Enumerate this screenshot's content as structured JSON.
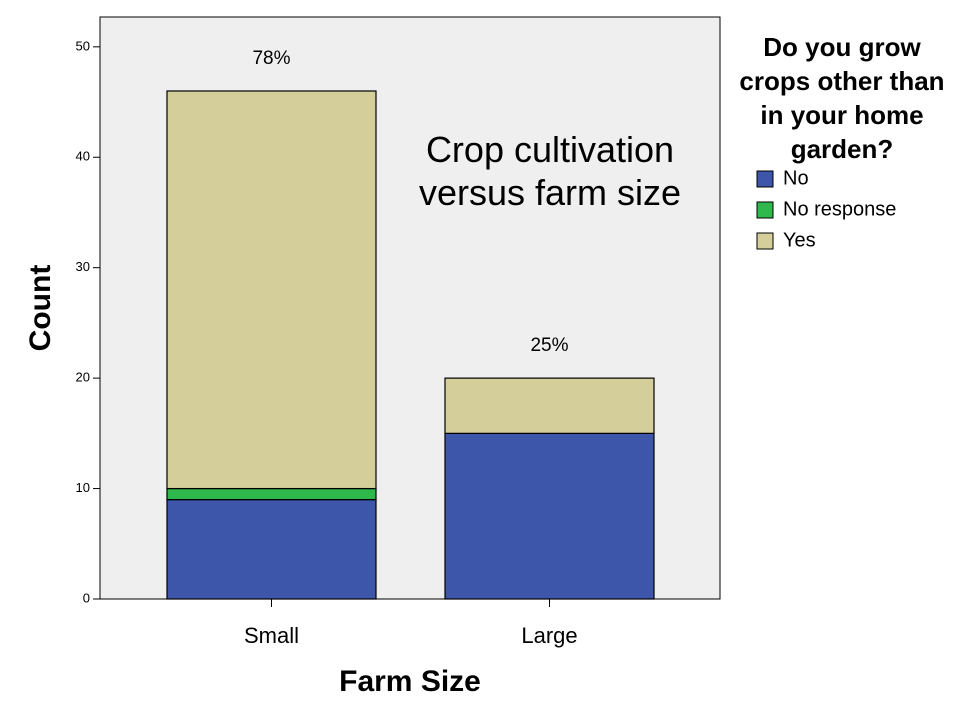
{
  "chart_data": {
    "type": "stacked_bar",
    "title": "Crop cultivation versus farm size",
    "x_label": "Farm Size",
    "y_label": "Count",
    "categories": [
      "Small",
      "Large"
    ],
    "series": [
      {
        "name": "No",
        "color": "#3d56a9",
        "values": [
          9,
          15
        ]
      },
      {
        "name": "No response",
        "color": "#2fb84b",
        "values": [
          1,
          0
        ]
      },
      {
        "name": "Yes",
        "color": "#d4cf9a",
        "values": [
          36,
          5
        ]
      }
    ],
    "annotations": [
      "78%",
      "25%"
    ],
    "legend_title": "Do you grow crops other than in your home garden?",
    "legend": "right",
    "ylim": [
      0,
      52.7
    ],
    "yticks": [
      0,
      10,
      20,
      30,
      40,
      50
    ]
  }
}
